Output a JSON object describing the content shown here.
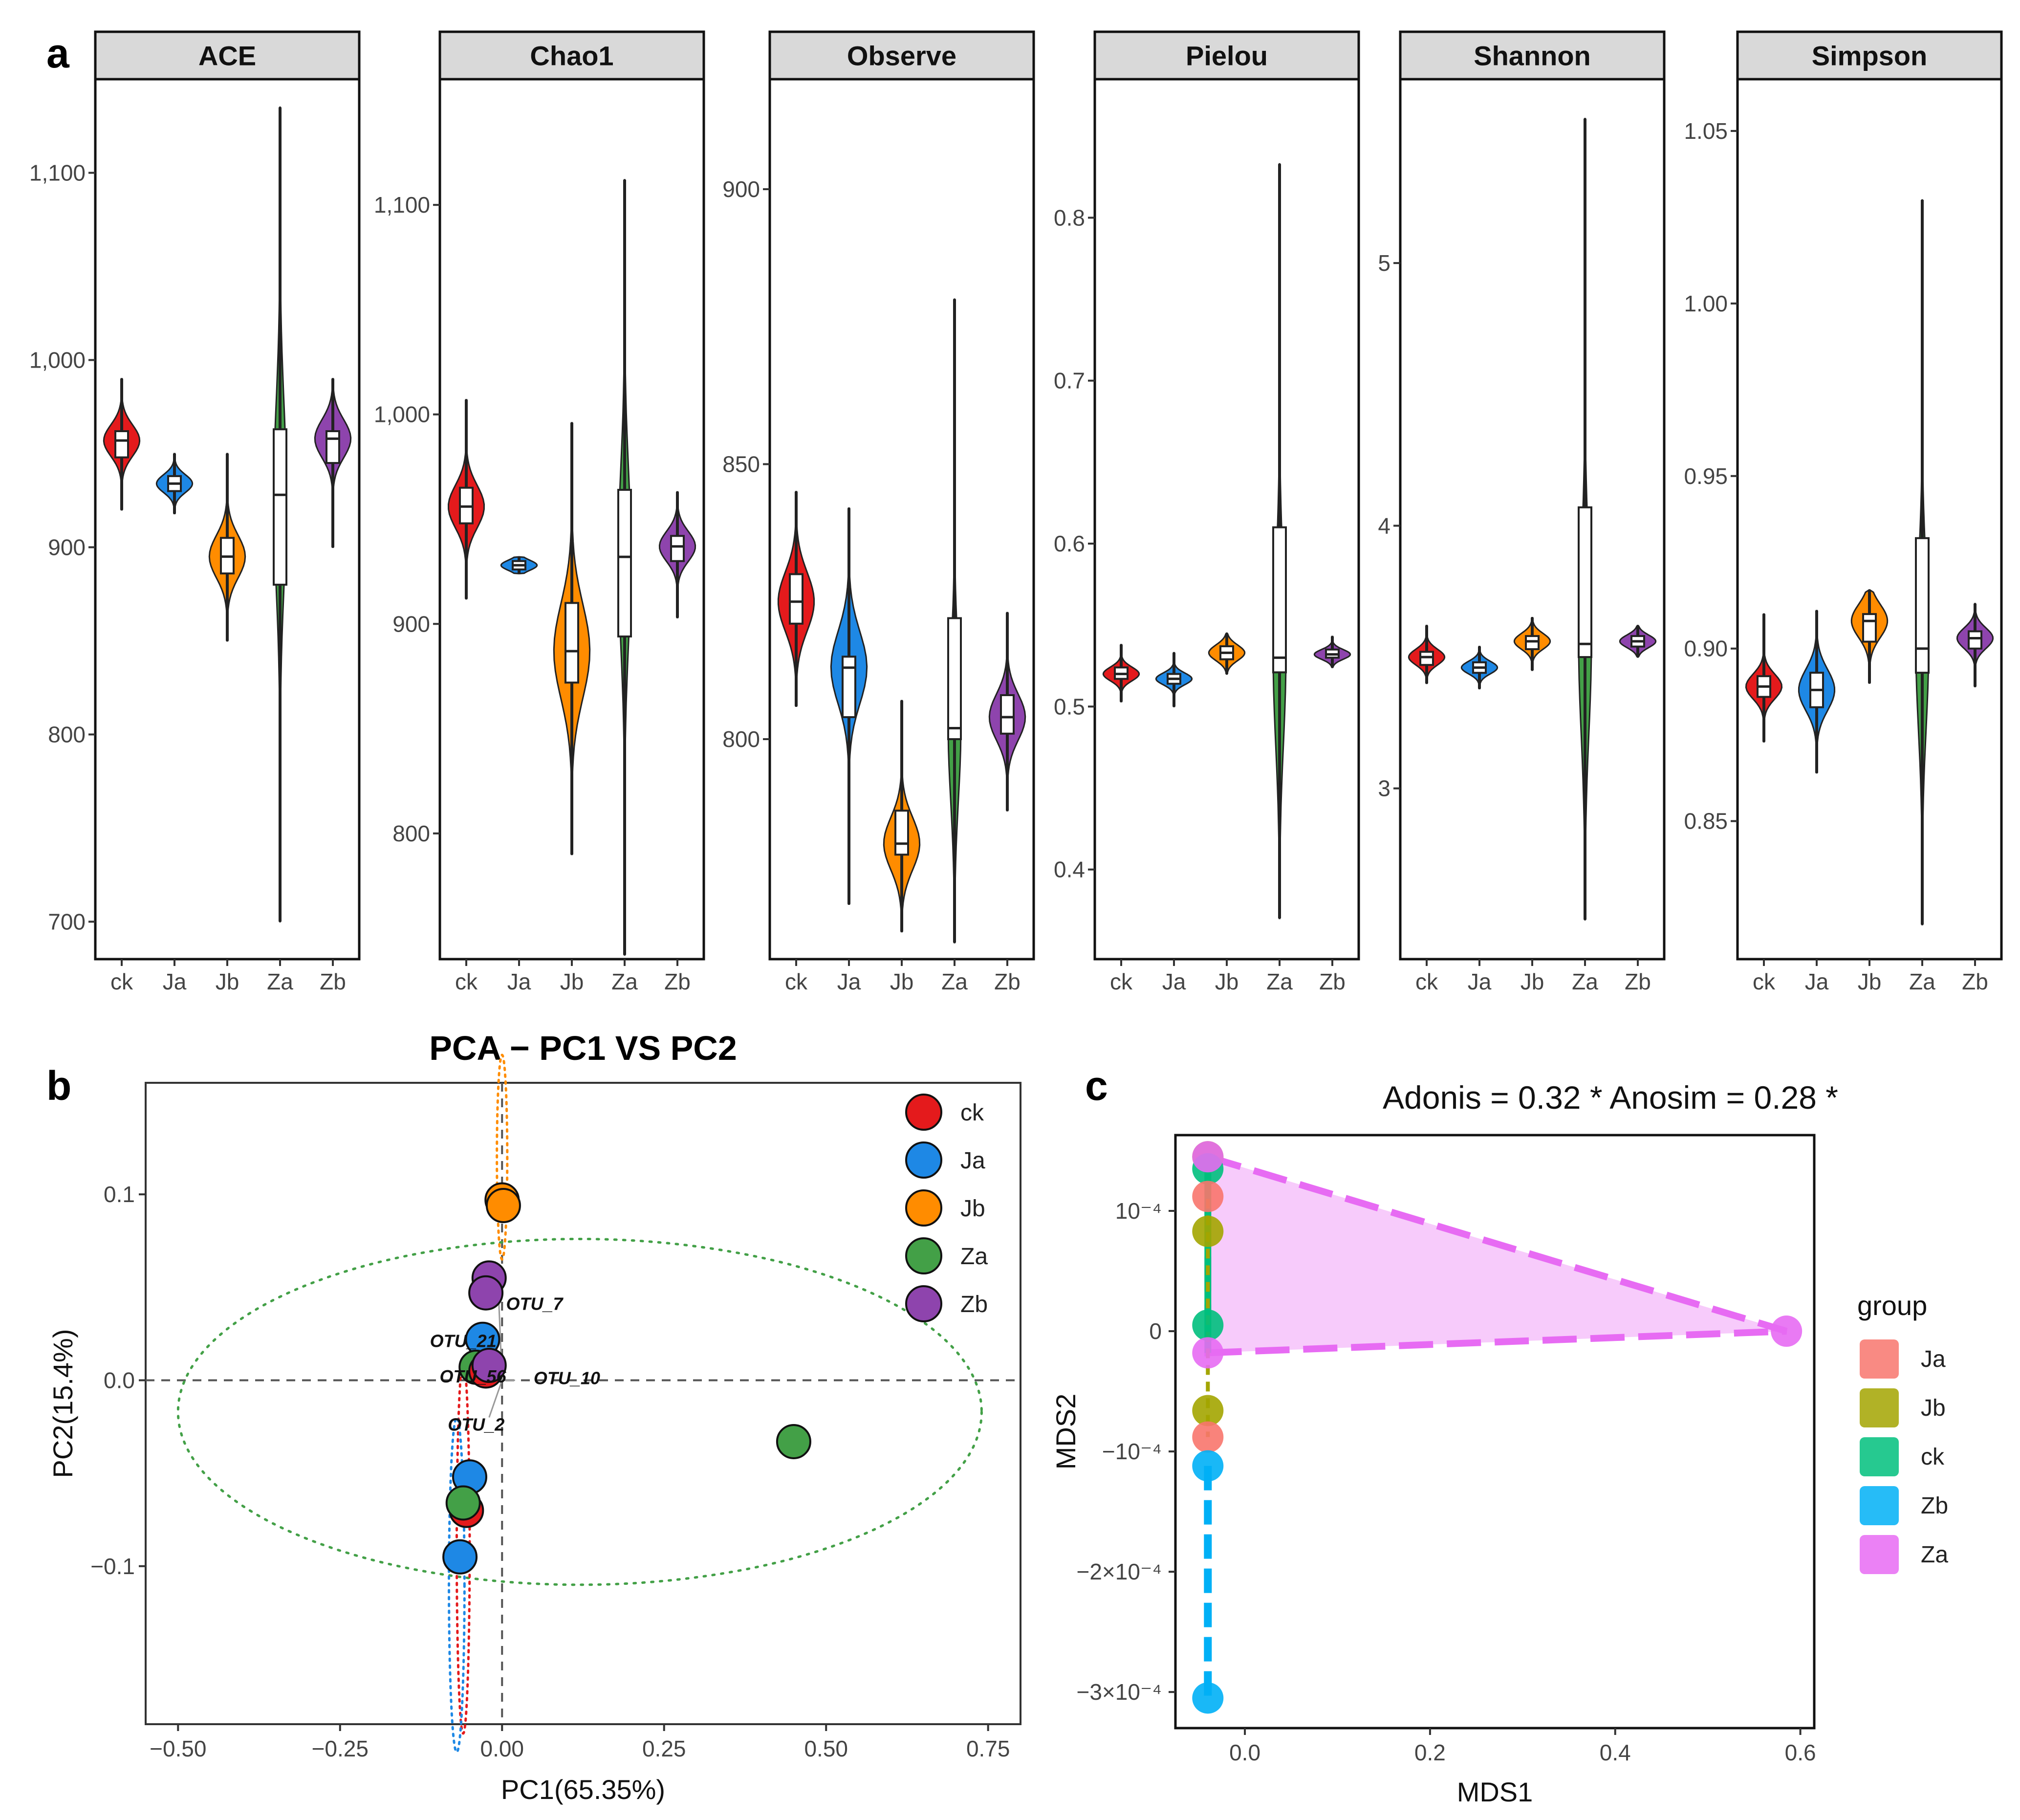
{
  "panel_labels": {
    "a": "a",
    "b": "b",
    "c": "c"
  },
  "colors": {
    "ck": "#e41a1c",
    "Ja": "#1e88e5",
    "Jb": "#ff8c00",
    "Za": "#43a047",
    "Zb": "#8e44ad",
    "nmds_Ja": "#f8766d",
    "nmds_Jb": "#a3a500",
    "nmds_ck": "#00bf7d",
    "nmds_Zb": "#00b0f6",
    "nmds_Za": "#e76bf3"
  },
  "chart_data": [
    {
      "type": "violin",
      "panel": "a",
      "categories": [
        "ck",
        "Ja",
        "Jb",
        "Za",
        "Zb"
      ],
      "facets": [
        {
          "title": "ACE",
          "ylim": [
            680,
            1150
          ],
          "yticks": [
            700,
            800,
            900,
            1000,
            1100
          ],
          "ytick_labels": [
            "700",
            "800",
            "900",
            "1,000",
            "1,100"
          ],
          "groups": [
            {
              "name": "ck",
              "min": 920,
              "q1": 948,
              "median": 957,
              "q3": 962,
              "max": 990
            },
            {
              "name": "Ja",
              "min": 918,
              "q1": 930,
              "median": 934,
              "q3": 938,
              "max": 950
            },
            {
              "name": "Jb",
              "min": 850,
              "q1": 886,
              "median": 895,
              "q3": 905,
              "max": 950
            },
            {
              "name": "Za",
              "min": 700,
              "q1": 880,
              "median": 928,
              "q3": 963,
              "max": 1135
            },
            {
              "name": "Zb",
              "min": 900,
              "q1": 945,
              "median": 958,
              "q3": 962,
              "max": 990
            }
          ]
        },
        {
          "title": "Chao1",
          "ylim": [
            740,
            1160
          ],
          "yticks": [
            800,
            900,
            1000,
            1100
          ],
          "ytick_labels": [
            "800",
            "900",
            "1,000",
            "1,100"
          ],
          "groups": [
            {
              "name": "ck",
              "min": 912,
              "q1": 948,
              "median": 956,
              "q3": 965,
              "max": 1007
            },
            {
              "name": "Ja",
              "min": 924,
              "q1": 926,
              "median": 928,
              "q3": 930,
              "max": 932
            },
            {
              "name": "Jb",
              "min": 790,
              "q1": 872,
              "median": 887,
              "q3": 910,
              "max": 996
            },
            {
              "name": "Za",
              "min": 742,
              "q1": 894,
              "median": 932,
              "q3": 964,
              "max": 1112
            },
            {
              "name": "Zb",
              "min": 903,
              "q1": 930,
              "median": 937,
              "q3": 942,
              "max": 963
            }
          ]
        },
        {
          "title": "Observe",
          "ylim": [
            760,
            920
          ],
          "yticks": [
            800,
            850,
            900
          ],
          "ytick_labels": [
            "800",
            "850",
            "900"
          ],
          "groups": [
            {
              "name": "ck",
              "min": 806,
              "q1": 821,
              "median": 825,
              "q3": 830,
              "max": 845
            },
            {
              "name": "Ja",
              "min": 770,
              "q1": 804,
              "median": 813,
              "q3": 815,
              "max": 842
            },
            {
              "name": "Jb",
              "min": 765,
              "q1": 779,
              "median": 781,
              "q3": 787,
              "max": 807
            },
            {
              "name": "Za",
              "min": 763,
              "q1": 800,
              "median": 802,
              "q3": 822,
              "max": 880
            },
            {
              "name": "Zb",
              "min": 787,
              "q1": 801,
              "median": 804,
              "q3": 808,
              "max": 823
            }
          ]
        },
        {
          "title": "Pielou",
          "ylim": [
            0.345,
            0.885
          ],
          "yticks": [
            0.4,
            0.5,
            0.6,
            0.7,
            0.8
          ],
          "ytick_labels": [
            "0.4",
            "0.5",
            "0.6",
            "0.7",
            "0.8"
          ],
          "groups": [
            {
              "name": "ck",
              "min": 0.503,
              "q1": 0.517,
              "median": 0.52,
              "q3": 0.524,
              "max": 0.538
            },
            {
              "name": "Ja",
              "min": 0.5,
              "q1": 0.514,
              "median": 0.517,
              "q3": 0.52,
              "max": 0.533
            },
            {
              "name": "Jb",
              "min": 0.52,
              "q1": 0.529,
              "median": 0.533,
              "q3": 0.537,
              "max": 0.545
            },
            {
              "name": "Za",
              "min": 0.37,
              "q1": 0.521,
              "median": 0.53,
              "q3": 0.61,
              "max": 0.833
            },
            {
              "name": "Zb",
              "min": 0.524,
              "q1": 0.53,
              "median": 0.532,
              "q3": 0.535,
              "max": 0.543
            }
          ]
        },
        {
          "title": "Shannon",
          "ylim": [
            2.35,
            5.7
          ],
          "yticks": [
            3,
            4,
            5
          ],
          "ytick_labels": [
            "3",
            "4",
            "5"
          ],
          "groups": [
            {
              "name": "ck",
              "min": 3.4,
              "q1": 3.47,
              "median": 3.5,
              "q3": 3.52,
              "max": 3.62
            },
            {
              "name": "Ja",
              "min": 3.38,
              "q1": 3.44,
              "median": 3.46,
              "q3": 3.48,
              "max": 3.54
            },
            {
              "name": "Jb",
              "min": 3.45,
              "q1": 3.53,
              "median": 3.56,
              "q3": 3.58,
              "max": 3.65
            },
            {
              "name": "Za",
              "min": 2.5,
              "q1": 3.5,
              "median": 3.55,
              "q3": 4.07,
              "max": 5.55
            },
            {
              "name": "Zb",
              "min": 3.5,
              "q1": 3.54,
              "median": 3.56,
              "q3": 3.58,
              "max": 3.62
            }
          ]
        },
        {
          "title": "Simpson",
          "ylim": [
            0.81,
            1.065
          ],
          "yticks": [
            0.85,
            0.9,
            0.95,
            1.0,
            1.05
          ],
          "ytick_labels": [
            "0.85",
            "0.90",
            "0.95",
            "1.00",
            "1.05"
          ],
          "groups": [
            {
              "name": "ck",
              "min": 0.873,
              "q1": 0.886,
              "median": 0.889,
              "q3": 0.892,
              "max": 0.91
            },
            {
              "name": "Ja",
              "min": 0.864,
              "q1": 0.883,
              "median": 0.888,
              "q3": 0.893,
              "max": 0.911
            },
            {
              "name": "Jb",
              "min": 0.89,
              "q1": 0.902,
              "median": 0.908,
              "q3": 0.91,
              "max": 0.917
            },
            {
              "name": "Za",
              "min": 0.82,
              "q1": 0.893,
              "median": 0.9,
              "q3": 0.932,
              "max": 1.03
            },
            {
              "name": "Zb",
              "min": 0.889,
              "q1": 0.9,
              "median": 0.903,
              "q3": 0.905,
              "max": 0.913
            }
          ]
        }
      ]
    },
    {
      "type": "scatter",
      "panel": "b",
      "title": "PCA − PC1 VS PC2",
      "xlabel": "PC1(65.35%)",
      "ylabel": "PC2(15.4%)",
      "xlim": [
        -0.55,
        0.8
      ],
      "ylim": [
        -0.185,
        0.16
      ],
      "xticks": [
        -0.5,
        -0.25,
        0,
        0.25,
        0.5,
        0.75
      ],
      "xtick_labels": [
        "−0.50",
        "−0.25",
        "0.00",
        "0.25",
        "0.50",
        "0.75"
      ],
      "yticks": [
        -0.1,
        0,
        0.1
      ],
      "ytick_labels": [
        "−0.1",
        "0.0",
        "0.1"
      ],
      "legend": [
        "ck",
        "Ja",
        "Jb",
        "Za",
        "Zb"
      ],
      "points": [
        {
          "group": "Jb",
          "x": 0.0,
          "y": 0.097
        },
        {
          "group": "Jb",
          "x": 0.002,
          "y": 0.094
        },
        {
          "group": "Zb",
          "x": -0.02,
          "y": 0.055
        },
        {
          "group": "Zb",
          "x": -0.025,
          "y": 0.047
        },
        {
          "group": "Ja",
          "x": -0.03,
          "y": 0.022
        },
        {
          "group": "Za",
          "x": -0.04,
          "y": 0.007
        },
        {
          "group": "ck",
          "x": -0.025,
          "y": 0.005
        },
        {
          "group": "Zb",
          "x": -0.02,
          "y": 0.008
        },
        {
          "group": "Za",
          "x": 0.45,
          "y": -0.033
        },
        {
          "group": "Ja",
          "x": -0.05,
          "y": -0.052
        },
        {
          "group": "ck",
          "x": -0.055,
          "y": -0.07
        },
        {
          "group": "Za",
          "x": -0.06,
          "y": -0.066
        },
        {
          "group": "Ja",
          "x": -0.065,
          "y": -0.095
        }
      ],
      "loadings": [
        {
          "label": "OTU_7",
          "x": -0.005,
          "y": 0.042
        },
        {
          "label": "OTU_21",
          "x": -0.01,
          "y": 0.02
        },
        {
          "label": "OTU_10",
          "x": 0.02,
          "y": 0.0
        },
        {
          "label": "OTU_56",
          "x": -0.008,
          "y": 0.002
        },
        {
          "label": "OTU_2",
          "x": -0.02,
          "y": -0.02
        }
      ],
      "otu_labels": [
        {
          "label": "OTU_7",
          "x": 0.05,
          "y": 0.041
        },
        {
          "label": "OTU_21",
          "x": -0.06,
          "y": 0.021
        },
        {
          "label": "OTU_56",
          "x": -0.045,
          "y": 0.002
        },
        {
          "label": "OTU_10",
          "x": 0.1,
          "y": 0.001
        },
        {
          "label": "OTU_2",
          "x": -0.04,
          "y": -0.024
        }
      ],
      "ellipse_Za": {
        "cx": 0.12,
        "cy": -0.017,
        "rx": 0.62,
        "ry": 0.093
      }
    },
    {
      "type": "scatter",
      "panel": "c",
      "annotation": "Adonis  = 0.32 * Anosim  = 0.28 *",
      "xlabel": "MDS1",
      "ylabel": "MDS2",
      "xlim": [
        -0.075,
        0.615
      ],
      "ylim": [
        -0.00033,
        0.000163
      ],
      "xticks": [
        0.0,
        0.2,
        0.4,
        0.6
      ],
      "xtick_labels": [
        "0.0",
        "0.2",
        "0.4",
        "0.6"
      ],
      "yticks": [
        -0.0003,
        -0.0002,
        -0.0001,
        0,
        0.0001
      ],
      "ytick_labels": [
        "−3×10⁻⁴",
        "−2×10⁻⁴",
        "−10⁻⁴",
        "0",
        "10⁻⁴"
      ],
      "legend_title": "group",
      "legend": [
        "Ja",
        "Jb",
        "ck",
        "Zb",
        "Za"
      ],
      "points": [
        {
          "group": "Jb",
          "x": -0.04,
          "y": 0.000145
        },
        {
          "group": "ck",
          "x": -0.04,
          "y": 0.000135
        },
        {
          "group": "Ja",
          "x": -0.04,
          "y": 0.000112
        },
        {
          "group": "Jb",
          "x": -0.04,
          "y": 8.3e-05
        },
        {
          "group": "ck",
          "x": -0.04,
          "y": 5e-06
        },
        {
          "group": "Za",
          "x": -0.04,
          "y": -1.8e-05
        },
        {
          "group": "Jb",
          "x": -0.04,
          "y": -6.6e-05
        },
        {
          "group": "Ja",
          "x": -0.04,
          "y": -8.8e-05
        },
        {
          "group": "Zb",
          "x": -0.04,
          "y": -0.000112
        },
        {
          "group": "Zb",
          "x": -0.04,
          "y": -0.000305
        },
        {
          "group": "Za",
          "x": 0.585,
          "y": 0.0
        },
        {
          "group": "Za",
          "x": -0.04,
          "y": 0.000145
        }
      ],
      "hull_Za": [
        [
          -0.04,
          0.000145
        ],
        [
          0.585,
          0.0
        ],
        [
          -0.04,
          -1.8e-05
        ]
      ]
    }
  ]
}
